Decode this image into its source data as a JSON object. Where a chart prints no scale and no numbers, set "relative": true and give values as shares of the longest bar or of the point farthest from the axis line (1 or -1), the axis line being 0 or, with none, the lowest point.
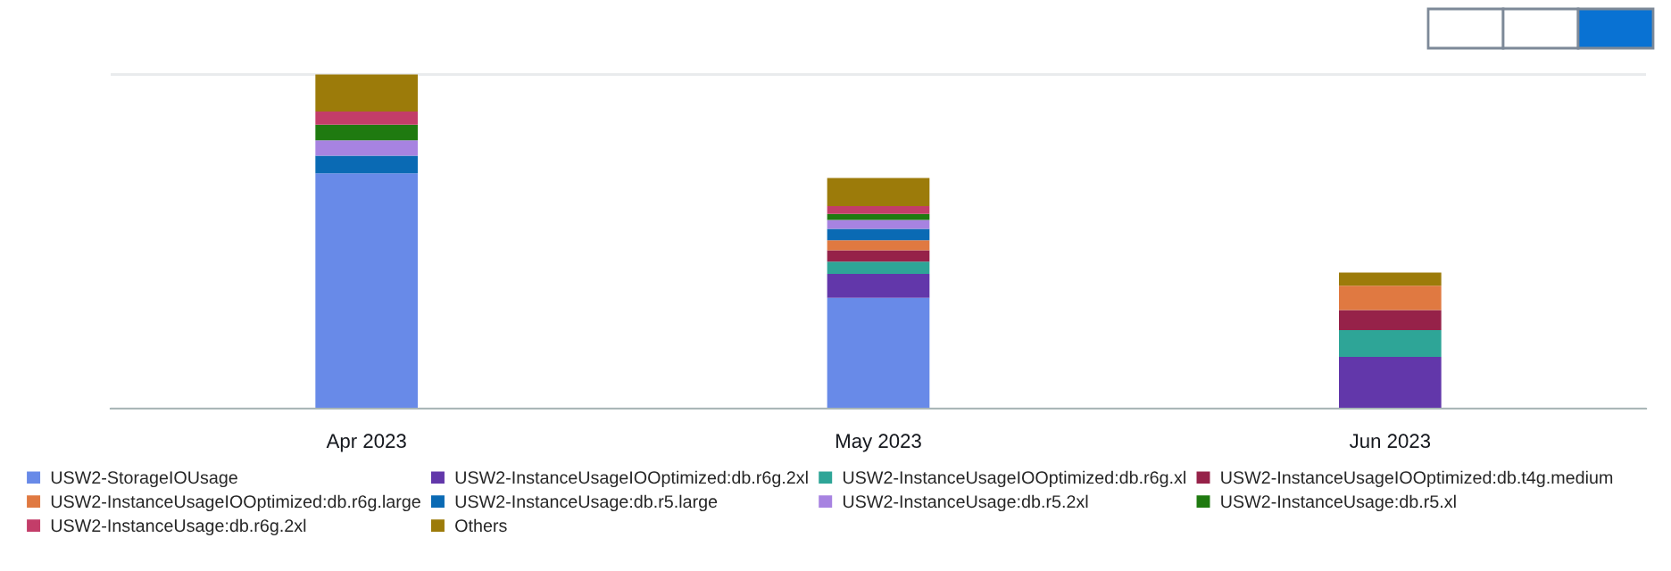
{
  "chart_data": {
    "type": "bar",
    "stacked": true,
    "relative": true,
    "grid": "y",
    "legend": "bottom",
    "categories": [
      "Apr 2023",
      "May 2023",
      "Jun 2023"
    ],
    "series": [
      {
        "name": "USW2-StorageIOUsage",
        "color": "#688ae8",
        "values": [
          0.704,
          0.332,
          null
        ]
      },
      {
        "name": "USW2-InstanceUsageIOOptimized:db.r6g.2xl",
        "color": "#6237aa",
        "values": [
          null,
          0.071,
          0.155
        ]
      },
      {
        "name": "USW2-InstanceUsageIOOptimized:db.r6g.xl",
        "color": "#2ea597",
        "values": [
          null,
          0.037,
          0.08
        ]
      },
      {
        "name": "USW2-InstanceUsageIOOptimized:db.t4g.medium",
        "color": "#962249",
        "values": [
          null,
          0.034,
          0.06
        ]
      },
      {
        "name": "USW2-InstanceUsageIOOptimized:db.r6g.large",
        "color": "#e07941",
        "values": [
          null,
          0.03,
          0.073
        ]
      },
      {
        "name": "USW2-InstanceUsage:db.r5.large",
        "color": "#0a6ab4",
        "values": [
          0.053,
          0.034,
          null
        ]
      },
      {
        "name": "USW2-InstanceUsage:db.r5.2xl",
        "color": "#a783e1",
        "values": [
          0.046,
          0.027,
          null
        ]
      },
      {
        "name": "USW2-InstanceUsage:db.r5.xl",
        "color": "#1f7a10",
        "values": [
          0.047,
          0.018,
          null
        ]
      },
      {
        "name": "USW2-InstanceUsage:db.r6g.2xl",
        "color": "#c33d69",
        "values": [
          0.039,
          0.023,
          null
        ]
      },
      {
        "name": "Others",
        "color": "#9c7b0a",
        "values": [
          0.111,
          0.084,
          0.039
        ]
      }
    ]
  }
}
